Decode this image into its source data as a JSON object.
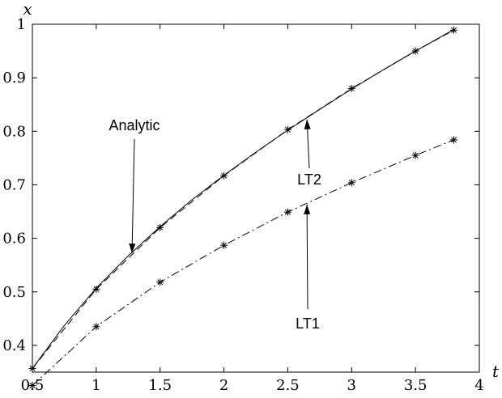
{
  "chart_data": {
    "type": "line",
    "xlabel": "t",
    "ylabel": "x",
    "xlim": [
      0.5,
      4
    ],
    "ylim": [
      0.35,
      1.0
    ],
    "x_ticks": [
      0.5,
      1,
      1.5,
      2,
      2.5,
      3,
      3.5,
      4
    ],
    "y_ticks": [
      0.4,
      0.5,
      0.6,
      0.7,
      0.8,
      0.9,
      1
    ],
    "x_tick_labels": [
      "0.5",
      "1",
      "1.5",
      "2",
      "2.5",
      "3",
      "3.5",
      "4"
    ],
    "y_tick_labels": [
      "0.4",
      "0.5",
      "0.6",
      "0.7",
      "0.8",
      "0.9",
      "1"
    ],
    "grid": false,
    "series": [
      {
        "name": "Analytic",
        "style": "solid",
        "markers": false,
        "x": [
          0.5,
          0.75,
          1.0,
          1.25,
          1.5,
          1.75,
          2.0,
          2.25,
          2.5,
          2.75,
          3.0,
          3.25,
          3.5,
          3.8
        ],
        "y": [
          0.357,
          0.437,
          0.507,
          0.567,
          0.622,
          0.672,
          0.718,
          0.761,
          0.802,
          0.841,
          0.879,
          0.915,
          0.95,
          0.99
        ]
      },
      {
        "name": "LT2",
        "style": "dashed",
        "markers": true,
        "x": [
          0.5,
          1.0,
          1.5,
          2.0,
          2.5,
          3.0,
          3.5,
          3.8
        ],
        "y": [
          0.357,
          0.505,
          0.62,
          0.717,
          0.803,
          0.88,
          0.95,
          0.989
        ]
      },
      {
        "name": "LT1",
        "style": "dashdot",
        "markers": true,
        "x": [
          0.5,
          1.0,
          1.5,
          2.0,
          2.5,
          3.0,
          3.5,
          3.8
        ],
        "y": [
          0.325,
          0.435,
          0.518,
          0.587,
          0.649,
          0.704,
          0.755,
          0.784
        ]
      }
    ],
    "annotations": [
      {
        "text": "Analytic",
        "target": [
          1.28,
          0.572
        ]
      },
      {
        "text": "LT2",
        "target": [
          2.65,
          0.822
        ]
      },
      {
        "text": "LT1",
        "target": [
          2.65,
          0.663
        ]
      }
    ]
  }
}
